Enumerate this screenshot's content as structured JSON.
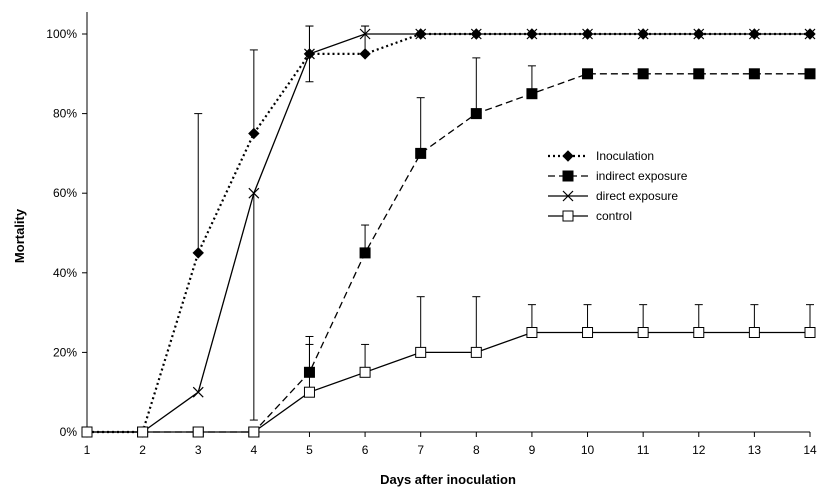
{
  "chart_data": {
    "type": "line",
    "title": "",
    "xlabel": "Days after inoculation",
    "ylabel": "Mortality",
    "x": [
      1,
      2,
      3,
      4,
      5,
      6,
      7,
      8,
      9,
      10,
      11,
      12,
      13,
      14
    ],
    "xlim": [
      1,
      14
    ],
    "ylim": [
      0,
      100
    ],
    "y_ticks": [
      0,
      20,
      40,
      60,
      80,
      100
    ],
    "y_tick_labels": [
      "0%",
      "20%",
      "40%",
      "60%",
      "80%",
      "100%"
    ],
    "x_tick_labels": [
      "1",
      "2",
      "3",
      "4",
      "5",
      "6",
      "7",
      "8",
      "9",
      "10",
      "11",
      "12",
      "13",
      "14"
    ],
    "grid": false,
    "legend_position": "right-middle",
    "series": [
      {
        "name": "Inoculation",
        "marker": "diamond",
        "line_style": "dotted",
        "color": "#000000",
        "values": [
          0,
          0,
          45,
          75,
          95,
          95,
          100,
          100,
          100,
          100,
          100,
          100,
          100,
          100
        ],
        "error_upper": [
          0,
          0,
          80,
          96,
          102,
          102,
          100,
          100,
          100,
          100,
          100,
          100,
          100,
          100
        ]
      },
      {
        "name": "indirect exposure",
        "marker": "filled-square",
        "line_style": "dashed",
        "color": "#000000",
        "values": [
          0,
          0,
          0,
          0,
          15,
          45,
          70,
          80,
          85,
          90,
          90,
          90,
          90,
          90
        ],
        "error_upper": [
          0,
          0,
          0,
          0,
          24,
          52,
          84,
          94,
          92,
          90,
          90,
          90,
          90,
          90
        ]
      },
      {
        "name": "direct exposure",
        "marker": "x",
        "line_style": "solid",
        "color": "#000000",
        "values": [
          0,
          0,
          10,
          60,
          95,
          100,
          100,
          100,
          100,
          100,
          100,
          100,
          100,
          100
        ],
        "error_upper": [
          0,
          0,
          10,
          60,
          102,
          102,
          100,
          100,
          100,
          100,
          100,
          100,
          100,
          100
        ],
        "error_lower": [
          0,
          0,
          10,
          3,
          88,
          100,
          100,
          100,
          100,
          100,
          100,
          100,
          100,
          100
        ]
      },
      {
        "name": "control",
        "marker": "open-square",
        "line_style": "solid",
        "color": "#000000",
        "values": [
          0,
          0,
          0,
          0,
          10,
          15,
          20,
          20,
          25,
          25,
          25,
          25,
          25,
          25
        ],
        "error_upper": [
          0,
          0,
          0,
          0,
          22,
          22,
          34,
          34,
          32,
          32,
          32,
          32,
          32,
          32
        ]
      }
    ]
  }
}
